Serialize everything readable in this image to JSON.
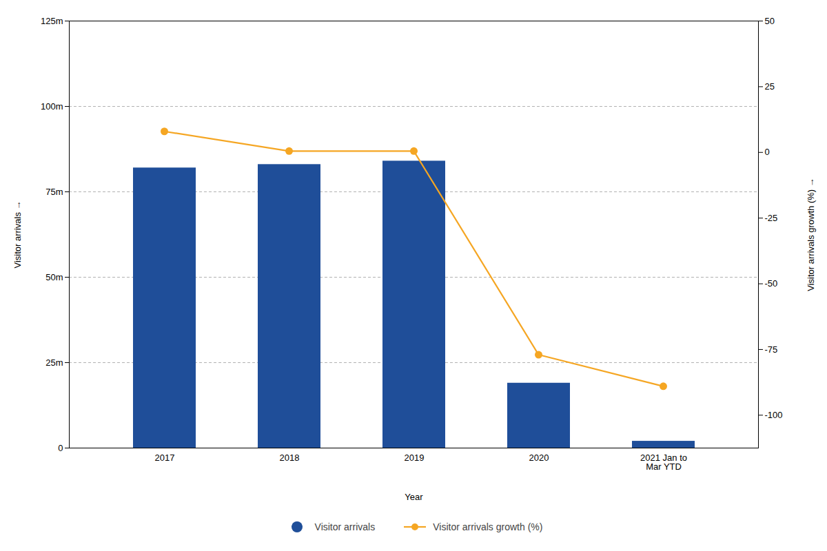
{
  "chart_data": {
    "type": "bar",
    "categories": [
      "2017",
      "2018",
      "2019",
      "2020",
      "2021 Jan to\nMar YTD"
    ],
    "xlabel": "Year",
    "ylabel": "Visitor arrivals",
    "y2label": "Visitor arrivals growth (%)",
    "series": [
      {
        "name": "Visitor arrivals",
        "type": "bar",
        "color": "#1f4e99",
        "values": [
          82000000,
          83000000,
          84000000,
          19000000,
          2000000
        ]
      },
      {
        "name": "Visitor arrivals growth (%)",
        "type": "line",
        "axis": "y2",
        "color": "#f5a623",
        "marker": "circle",
        "values": [
          8,
          0.5,
          0.5,
          -77,
          -89
        ]
      }
    ],
    "ylim": [
      0,
      125000000
    ],
    "yticks": [
      0,
      {
        "value": 25000000,
        "label": "25m"
      },
      {
        "value": 50000000,
        "label": "50m"
      },
      {
        "value": 75000000,
        "label": "75m"
      },
      {
        "value": 100000000,
        "label": "100m"
      },
      {
        "value": 125000000,
        "label": "125m"
      }
    ],
    "y2lim": [
      -112.5,
      50
    ],
    "y2ticks": [
      -100,
      -75,
      -50,
      -25,
      0,
      25,
      50
    ],
    "grid": true,
    "legend": "bottom"
  }
}
